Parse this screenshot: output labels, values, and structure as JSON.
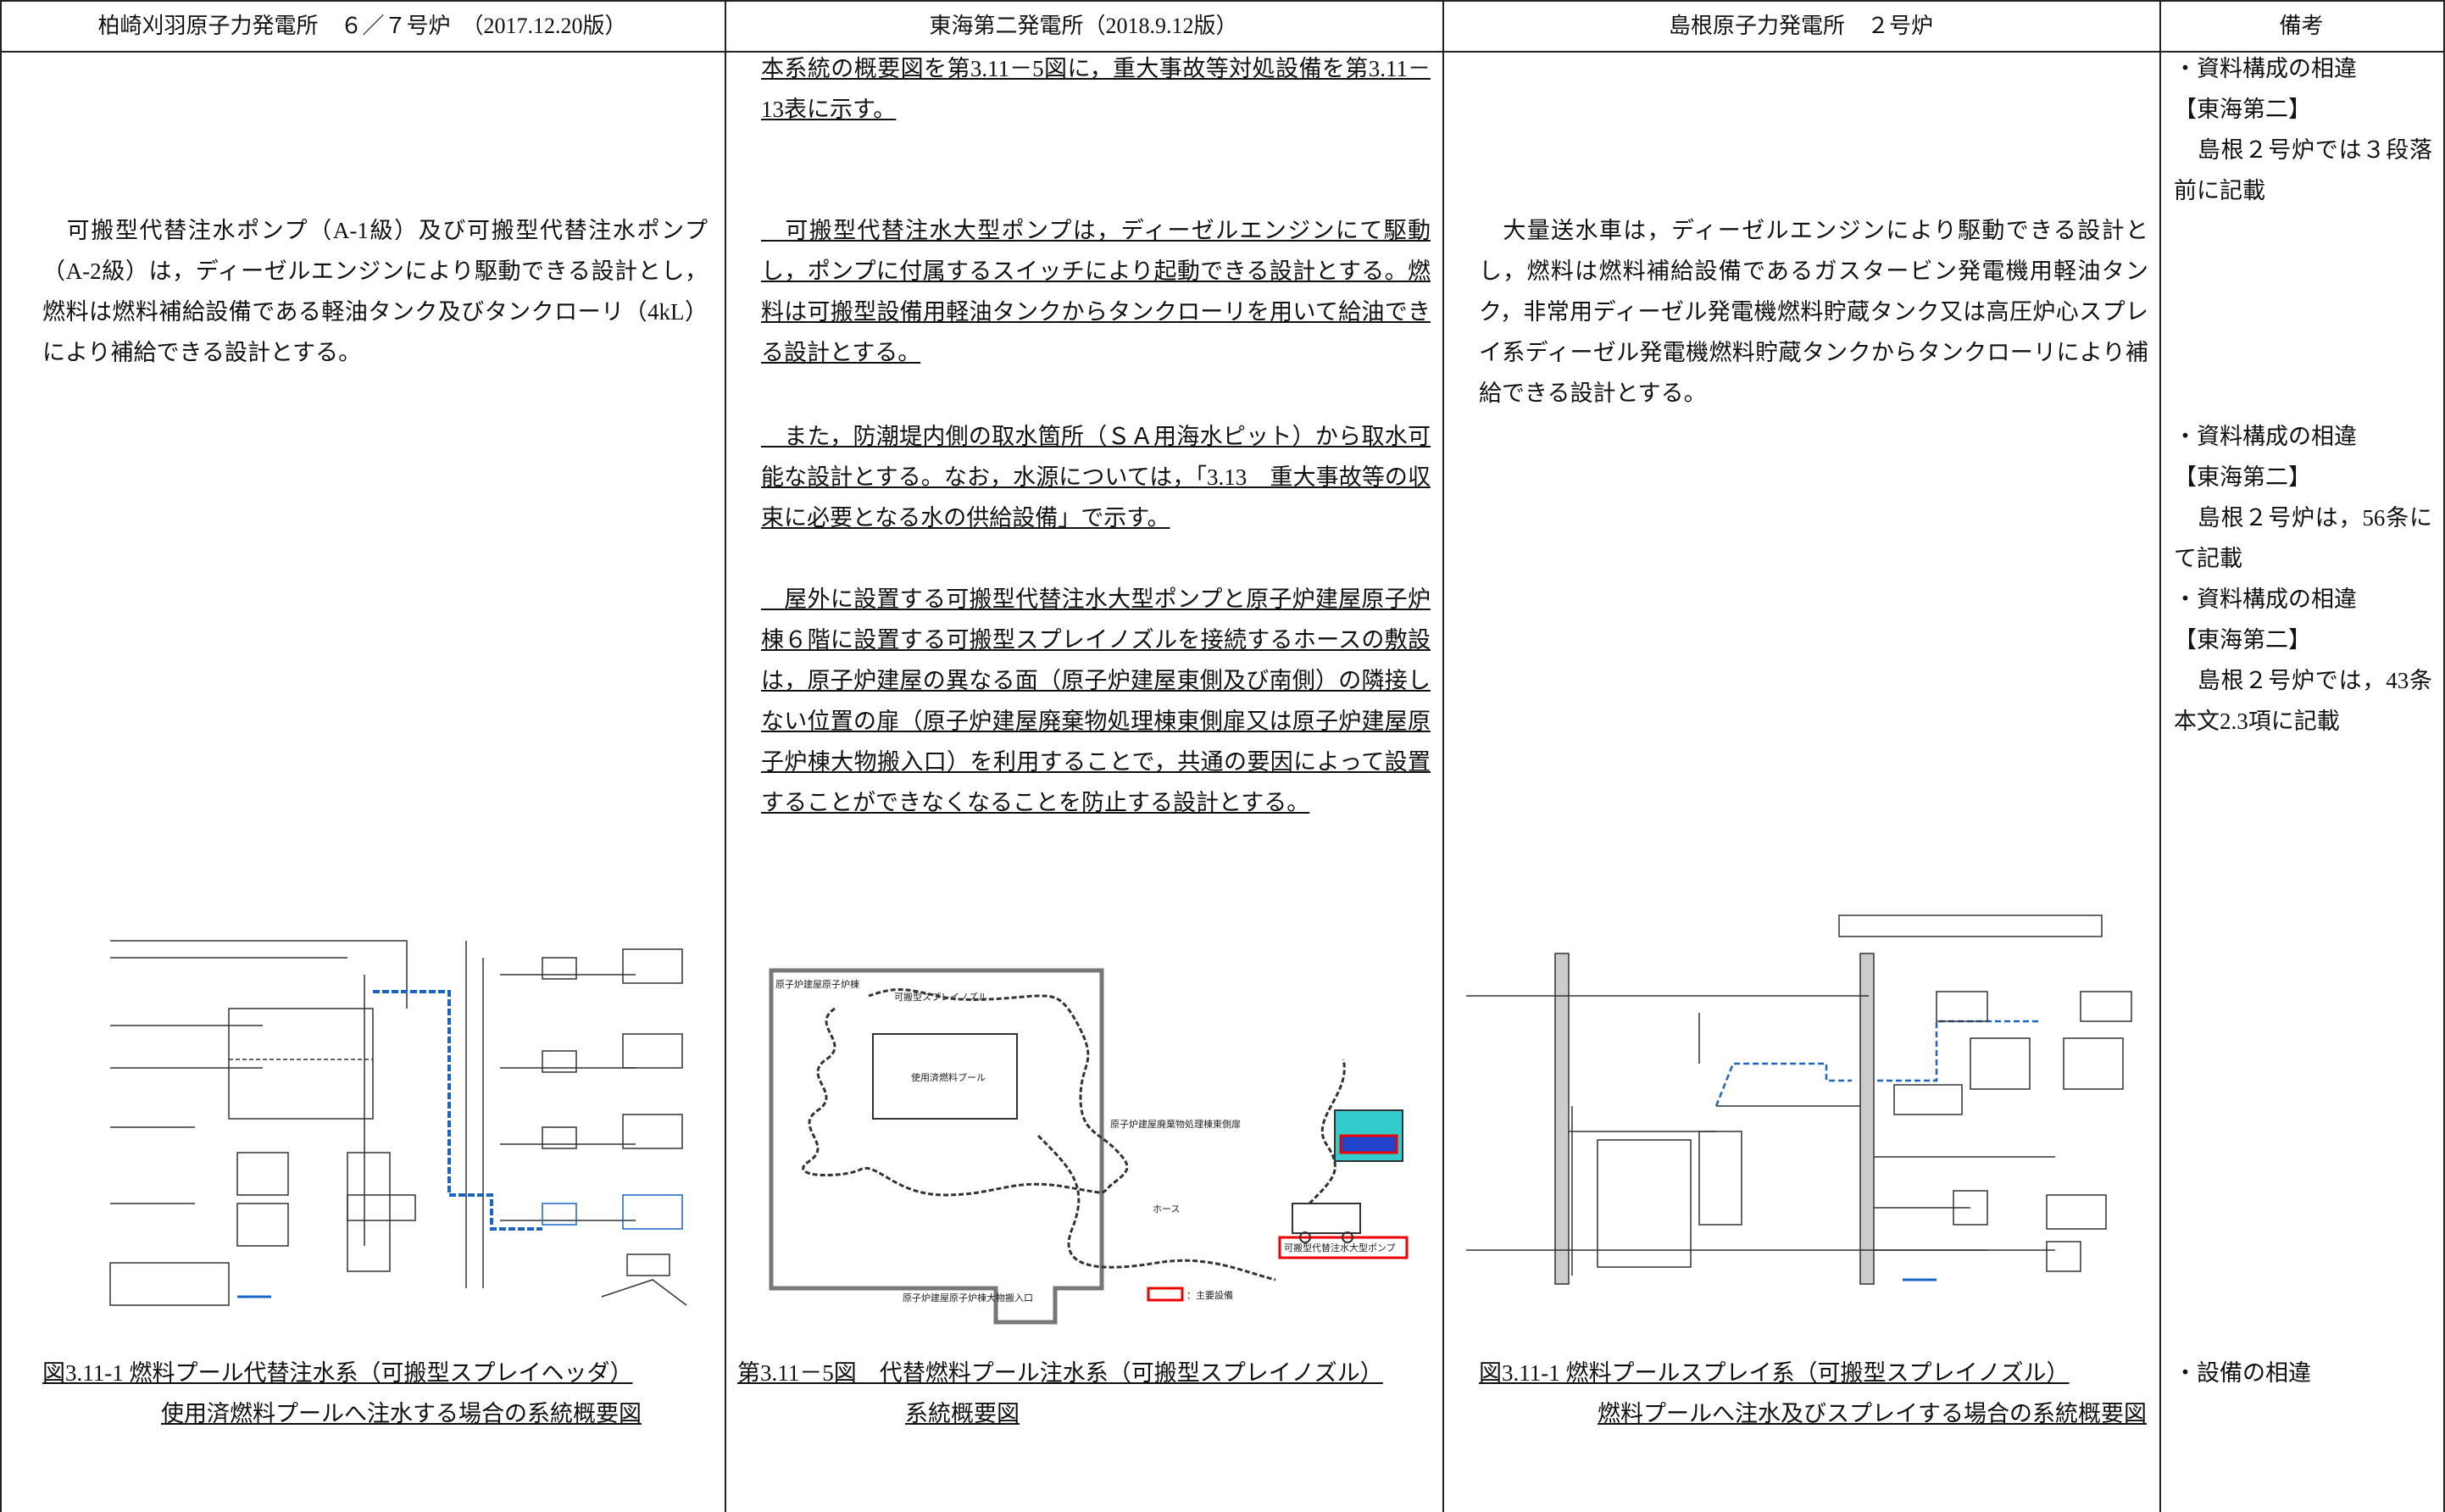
{
  "table": {
    "headers": [
      "柏崎刈羽原子力発電所　６／７号炉　（2017.12.20版）",
      "東海第二発電所（2018.9.12版）",
      "島根原子力発電所　２号炉",
      "備考"
    ],
    "kk": {
      "paragraph": "　可搬型代替注水ポンプ（A-1級）及び可搬型代替注水ポンプ（A-2級）は，ディーゼルエンジンにより駆動できる設計とし，燃料は燃料補給設備である軽油タンク及びタンクローリ（4kL）により補給できる設計とする。",
      "caption": [
        "図3.11-1 燃料プール代替注水系（可搬型スプレイヘッダ）",
        "使用済燃料プールへ注水する場合の系統概要図"
      ]
    },
    "tokai": {
      "paragraphs": [
        "本系統の概要図を第3.11－5図に，重大事故等対処設備を第3.11－13表に示す。",
        "　可搬型代替注水大型ポンプは，ディーゼルエンジンにて駆動し，ポンプに付属するスイッチにより起動できる設計とする。燃料は可搬型設備用軽油タンクからタンクローリを用いて給油できる設計とする。",
        "　また，防潮堤内側の取水箇所（ＳＡ用海水ピット）から取水可能な設計とする。なお，水源については，「3.13　重大事故等の収束に必要となる水の供給設備」で示す。",
        "　屋外に設置する可搬型代替注水大型ポンプと原子炉建屋原子炉棟６階に設置する可搬型スプレイノズルを接続するホースの敷設は，原子炉建屋の異なる面（原子炉建屋東側及び南側）の隣接しない位置の扉（原子炉建屋廃棄物処理棟東側扉又は原子炉建屋原子炉棟大物搬入口）を利用することで，共通の要因によって設置することができなくなることを防止する設計とする。"
      ],
      "figure_labels": [
        "原子炉建屋原子炉棟",
        "可搬型スプレイノズル",
        "使用済燃料プール",
        "原子炉建屋廃棄物処理棟東側扉",
        "ホース",
        "可搬型代替注水大型ポンプ",
        "：主要設備",
        "原子炉建屋原子炉棟大物搬入口"
      ],
      "caption": [
        "第3.11－5図　代替燃料プール注水系（可搬型スプレイノズル）",
        "系統概要図"
      ]
    },
    "shimane": {
      "paragraph": "　大量送水車は，ディーゼルエンジンにより駆動できる設計とし，燃料は燃料補給設備であるガスタービン発電機用軽油タンク，非常用ディーゼル発電機燃料貯蔵タンク又は高圧炉心スプレイ系ディーゼル発電機燃料貯蔵タンクからタンクローリにより補給できる設計とする。",
      "caption": [
        "図3.11-1 燃料プールスプレイ系（可搬型スプレイノズル）",
        "燃料プールへ注水及びスプレイする場合の系統概要図"
      ]
    },
    "notes": [
      [
        "・資料構成の相違",
        "【東海第二】",
        "　島根２号炉では３段落前に記載"
      ],
      [
        "・資料構成の相違",
        "【東海第二】",
        "　島根２号炉は，56条にて記載"
      ],
      [
        "・資料構成の相違",
        "【東海第二】",
        "　島根２号炉では，43条本文2.3項に記載"
      ],
      [
        "・設備の相違"
      ]
    ]
  }
}
